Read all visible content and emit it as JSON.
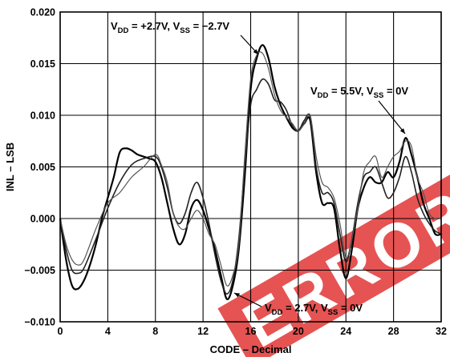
{
  "chart_data": {
    "type": "line",
    "xlabel": "CODE – Decimal",
    "ylabel": "INL – LSB",
    "xlim": [
      0,
      32
    ],
    "ylim": [
      -0.01,
      0.02
    ],
    "x_ticks": [
      "0",
      "4",
      "8",
      "12",
      "16",
      "20",
      "24",
      "28",
      "32"
    ],
    "y_ticks": [
      "0.020",
      "0.015",
      "0.010",
      "0.005",
      "0.000",
      "−0.005",
      "−0.010"
    ],
    "grid": true,
    "watermark_text": "ERROR",
    "annotations": [
      {
        "id": "a1",
        "pre": "V",
        "sub1": "DD",
        "mid": " = +2.7V, V",
        "sub2": "SS",
        "post": " = −2.7V"
      },
      {
        "id": "a2",
        "pre": "V",
        "sub1": "DD",
        "mid": " = 5.5V, V",
        "sub2": "SS",
        "post": " = 0V"
      },
      {
        "id": "a3",
        "pre": "V",
        "sub1": "DD",
        "mid": " = 2.7V, V",
        "sub2": "SS",
        "post": " = 0V"
      }
    ],
    "series": [
      {
        "color": "#000000",
        "width": 2.2,
        "points": [
          [
            0,
            0.0
          ],
          [
            0.5,
            -0.004
          ],
          [
            1,
            -0.0065
          ],
          [
            1.5,
            -0.0068
          ],
          [
            2,
            -0.006
          ],
          [
            2.5,
            -0.0045
          ],
          [
            3,
            -0.0025
          ],
          [
            3.5,
            0.0
          ],
          [
            4,
            0.002
          ],
          [
            4.5,
            0.004
          ],
          [
            5,
            0.0064
          ],
          [
            5.5,
            0.0068
          ],
          [
            6,
            0.0066
          ],
          [
            6.5,
            0.0062
          ],
          [
            7,
            0.006
          ],
          [
            7.5,
            0.0058
          ],
          [
            8,
            0.0055
          ],
          [
            8.5,
            0.004
          ],
          [
            9,
            0.0015
          ],
          [
            9.5,
            -0.001
          ],
          [
            10,
            -0.0025
          ],
          [
            10.5,
            -0.0015
          ],
          [
            11,
            0.001
          ],
          [
            11.5,
            0.0018
          ],
          [
            12,
            0.0008
          ],
          [
            12.5,
            -0.001
          ],
          [
            13,
            -0.003
          ],
          [
            13.5,
            -0.0055
          ],
          [
            14,
            -0.0078
          ],
          [
            14.5,
            -0.0065
          ],
          [
            15,
            -0.003
          ],
          [
            15.5,
            0.004
          ],
          [
            16,
            0.0125
          ],
          [
            16.5,
            0.0155
          ],
          [
            17,
            0.0168
          ],
          [
            17.5,
            0.0155
          ],
          [
            18,
            0.0128
          ],
          [
            18.5,
            0.011
          ],
          [
            19,
            0.0098
          ],
          [
            19.5,
            0.0088
          ],
          [
            20,
            0.0085
          ],
          [
            20.5,
            0.0092
          ],
          [
            21,
            0.0095
          ],
          [
            21.5,
            0.0045
          ],
          [
            22,
            0.0015
          ],
          [
            22.5,
            0.0015
          ],
          [
            23,
            0.001
          ],
          [
            23.5,
            -0.003
          ],
          [
            24,
            -0.0058
          ],
          [
            24.5,
            -0.003
          ],
          [
            25,
            0.001
          ],
          [
            25.5,
            0.003
          ],
          [
            26,
            0.004
          ],
          [
            26.5,
            0.0035
          ],
          [
            27,
            0.0035
          ],
          [
            27.5,
            0.0045
          ],
          [
            28,
            0.004
          ],
          [
            28.5,
            0.0055
          ],
          [
            29,
            0.0078
          ],
          [
            29.5,
            0.0062
          ],
          [
            30,
            0.004
          ],
          [
            30.5,
            0.0015
          ],
          [
            31,
            0.0
          ],
          [
            31.5,
            -0.0015
          ],
          [
            32,
            -0.0015
          ]
        ]
      },
      {
        "color": "#222222",
        "width": 1.6,
        "points": [
          [
            0,
            0.0
          ],
          [
            0.5,
            -0.003
          ],
          [
            1,
            -0.005
          ],
          [
            1.5,
            -0.0053
          ],
          [
            2,
            -0.0048
          ],
          [
            3,
            -0.002
          ],
          [
            4,
            0.001
          ],
          [
            5,
            0.0035
          ],
          [
            6,
            0.0052
          ],
          [
            7,
            0.0058
          ],
          [
            8,
            0.006
          ],
          [
            8.5,
            0.005
          ],
          [
            9,
            0.003
          ],
          [
            9.5,
            0.0005
          ],
          [
            10,
            -0.0005
          ],
          [
            10.5,
            0.0005
          ],
          [
            11,
            0.0025
          ],
          [
            11.5,
            0.0035
          ],
          [
            12,
            0.002
          ],
          [
            12.5,
            -0.0005
          ],
          [
            13,
            -0.0035
          ],
          [
            13.5,
            -0.006
          ],
          [
            14,
            -0.0073
          ],
          [
            14.5,
            -0.006
          ],
          [
            15,
            -0.002
          ],
          [
            15.5,
            0.005
          ],
          [
            16,
            0.011
          ],
          [
            16.5,
            0.0125
          ],
          [
            17,
            0.0135
          ],
          [
            17.5,
            0.013
          ],
          [
            18,
            0.0115
          ],
          [
            18.5,
            0.0113
          ],
          [
            19,
            0.0105
          ],
          [
            19.5,
            0.009
          ],
          [
            20,
            0.0085
          ],
          [
            20.5,
            0.0095
          ],
          [
            21,
            0.0098
          ],
          [
            21.5,
            0.005
          ],
          [
            22,
            0.0025
          ],
          [
            22.5,
            0.0025
          ],
          [
            23,
            0.0015
          ],
          [
            23.5,
            -0.0015
          ],
          [
            24,
            -0.0042
          ],
          [
            24.5,
            -0.002
          ],
          [
            25,
            0.0015
          ],
          [
            25.5,
            0.004
          ],
          [
            26,
            0.0045
          ],
          [
            26.5,
            0.005
          ],
          [
            27,
            0.0035
          ],
          [
            27.5,
            0.002
          ],
          [
            28,
            0.0025
          ],
          [
            28.5,
            0.004
          ],
          [
            29,
            0.006
          ],
          [
            29.5,
            0.0045
          ],
          [
            30,
            0.002
          ],
          [
            30.5,
            0.0005
          ],
          [
            31,
            -0.0005
          ],
          [
            31.5,
            -0.0012
          ],
          [
            32,
            -0.0015
          ]
        ]
      },
      {
        "color": "#555555",
        "width": 1.2,
        "points": [
          [
            0,
            0.0
          ],
          [
            0.5,
            -0.0025
          ],
          [
            1,
            -0.004
          ],
          [
            1.5,
            -0.0045
          ],
          [
            2,
            -0.004
          ],
          [
            3,
            -0.001
          ],
          [
            4,
            0.0015
          ],
          [
            5,
            0.0025
          ],
          [
            6,
            0.004
          ],
          [
            7,
            0.005
          ],
          [
            8,
            0.0062
          ],
          [
            8.5,
            0.0052
          ],
          [
            9,
            0.0035
          ],
          [
            9.5,
            0.0005
          ],
          [
            10,
            -0.0008
          ],
          [
            10.5,
            -0.001
          ],
          [
            11,
            0.0
          ],
          [
            11.5,
            0.0008
          ],
          [
            12,
            0.0
          ],
          [
            12.5,
            -0.0015
          ],
          [
            13,
            -0.0025
          ],
          [
            13.5,
            -0.0045
          ],
          [
            14,
            -0.0065
          ],
          [
            14.5,
            -0.0055
          ],
          [
            15,
            -0.0025
          ],
          [
            15.5,
            0.006
          ],
          [
            16,
            0.0135
          ],
          [
            16.5,
            0.0158
          ],
          [
            17,
            0.016
          ],
          [
            17.5,
            0.0145
          ],
          [
            18,
            0.012
          ],
          [
            18.5,
            0.0105
          ],
          [
            19,
            0.0098
          ],
          [
            19.5,
            0.0092
          ],
          [
            20,
            0.0085
          ],
          [
            20.5,
            0.0092
          ],
          [
            21,
            0.01
          ],
          [
            21.5,
            0.006
          ],
          [
            22,
            0.0035
          ],
          [
            22.5,
            0.003
          ],
          [
            23,
            0.002
          ],
          [
            23.5,
            -0.0005
          ],
          [
            24,
            -0.0038
          ],
          [
            24.5,
            -0.002
          ],
          [
            25,
            0.001
          ],
          [
            25.5,
            0.0045
          ],
          [
            26,
            0.0055
          ],
          [
            26.5,
            0.006
          ],
          [
            27,
            0.004
          ],
          [
            27.5,
            0.005
          ],
          [
            28,
            0.006
          ],
          [
            28.5,
            0.0065
          ],
          [
            29,
            0.0075
          ],
          [
            29.5,
            0.007
          ],
          [
            30,
            0.004
          ],
          [
            30.5,
            0.0025
          ],
          [
            31,
            0.0005
          ],
          [
            31.5,
            0.0
          ],
          [
            32,
            0.0
          ]
        ]
      }
    ]
  }
}
